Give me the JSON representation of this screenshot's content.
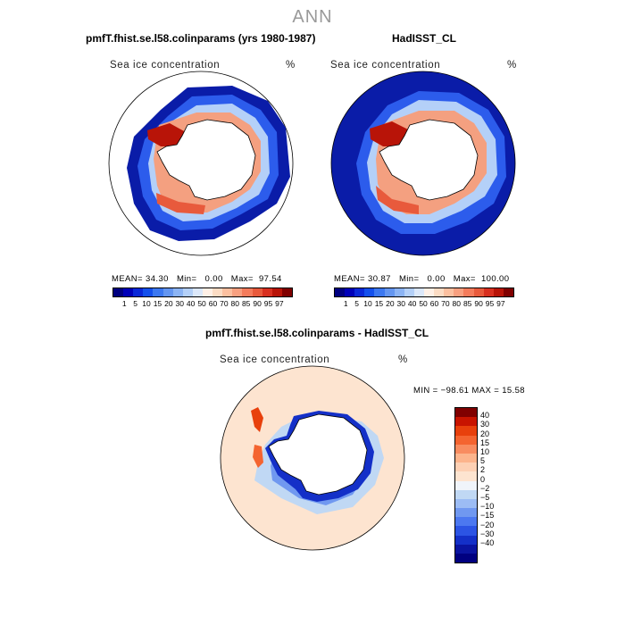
{
  "page": {
    "title": "ANN"
  },
  "panels": {
    "model": {
      "title": "pmfT.fhist.se.l58.colinparams (yrs 1980-1987)",
      "var_label": "Sea ice concentration",
      "units": "%",
      "stats": {
        "mean_label": "MEAN=",
        "mean": "34.30",
        "min_label": "Min=",
        "min": "0.00",
        "max_label": "Max=",
        "max": "97.54"
      }
    },
    "obs": {
      "title": "HadISST_CL",
      "var_label": "Sea ice concentration",
      "units": "%",
      "stats": {
        "mean_label": "MEAN=",
        "mean": "30.87",
        "min_label": "Min=",
        "min": "0.00",
        "max_label": "Max=",
        "max": "100.00"
      }
    },
    "diff": {
      "title": "pmfT.fhist.se.l58.colinparams - HadISST_CL",
      "var_label": "Sea ice concentration",
      "units": "%",
      "minmax": "MIN = −98.61  MAX =  15.58"
    }
  },
  "colorbar_abs": {
    "colors": [
      "#000080",
      "#0000b8",
      "#0a28d8",
      "#1450ec",
      "#3c78f0",
      "#6496f0",
      "#8cb4f4",
      "#b4d0f8",
      "#dce8fa",
      "#fff0e6",
      "#fcdcc4",
      "#fcc0a0",
      "#f8a080",
      "#f47c5c",
      "#e85a3c",
      "#d83020",
      "#b81408",
      "#800000"
    ],
    "labels": [
      "1",
      "5",
      "10",
      "15",
      "20",
      "30",
      "40",
      "50",
      "60",
      "70",
      "80",
      "85",
      "90",
      "95",
      "97"
    ]
  },
  "colorbar_diff": {
    "colors": [
      "#800000",
      "#c81400",
      "#e8400c",
      "#f46430",
      "#f88c60",
      "#fcb48c",
      "#fdd0b4",
      "#fde4d0",
      "#f0f4fa",
      "#c0d8f4",
      "#9cbcf4",
      "#7098f0",
      "#4c78f0",
      "#2c54e4",
      "#1430c8",
      "#0a14a0",
      "#000080"
    ],
    "labels": [
      "40",
      "30",
      "20",
      "15",
      "10",
      "5",
      "2",
      "0",
      "−2",
      "−5",
      "−10",
      "−15",
      "−20",
      "−30",
      "−40"
    ]
  }
}
